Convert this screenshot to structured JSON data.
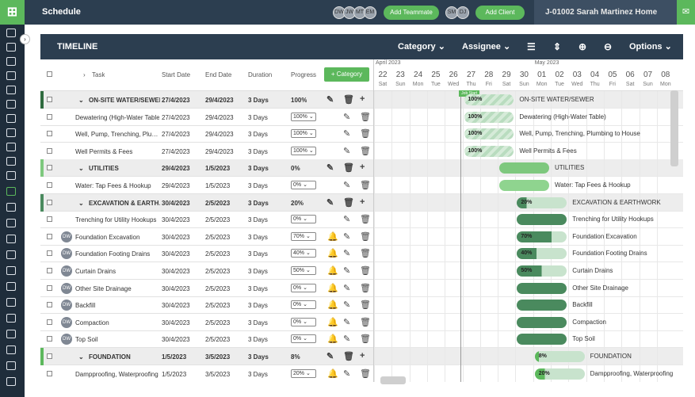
{
  "topbar": {
    "logo": "⊞",
    "title": "Schedule",
    "avatars_left": [
      "DW",
      "JW",
      "MT",
      "EM"
    ],
    "add_teammate": "Add Teammate",
    "avatars_right": [
      "SM",
      "DJ"
    ],
    "add_client": "Add Client",
    "job": "J-01002 Sarah Martinez Home",
    "chat_icon": "chat-icon"
  },
  "panel": {
    "title": "TIMELINE",
    "category": "Category ⌄",
    "assignee": "Assignee ⌄",
    "options": "Options ⌄"
  },
  "grid": {
    "headers": {
      "task": "Task",
      "start": "Start Date",
      "end": "End Date",
      "duration": "Duration",
      "progress": "Progress",
      "add_category": "+ Category"
    },
    "rows": [
      {
        "type": "group",
        "name": "ON-SITE WATER/SEWER",
        "start": "27/4/2023",
        "end": "29/4/2023",
        "duration": "3 Days",
        "progress": "100%",
        "color": "#2f6b3f"
      },
      {
        "type": "task",
        "name": "Dewatering (High-Water Table)",
        "start": "27/4/2023",
        "end": "29/4/2023",
        "duration": "3 Days",
        "progress": "100%"
      },
      {
        "type": "task",
        "name": "Well, Pump, Trenching, Plu…",
        "start": "27/4/2023",
        "end": "29/4/2023",
        "duration": "3 Days",
        "progress": "100%"
      },
      {
        "type": "task",
        "name": "Well Permits & Fees",
        "start": "27/4/2023",
        "end": "29/4/2023",
        "duration": "3 Days",
        "progress": "100%"
      },
      {
        "type": "group",
        "name": "UTILITIES",
        "start": "29/4/2023",
        "end": "1/5/2023",
        "duration": "3 Days",
        "progress": "0%",
        "color": "#7ec87e"
      },
      {
        "type": "task",
        "name": "Water: Tap Fees & Hookup",
        "start": "29/4/2023",
        "end": "1/5/2023",
        "duration": "3 Days",
        "progress": "0%"
      },
      {
        "type": "group",
        "name": "EXCAVATION & EARTH…",
        "start": "30/4/2023",
        "end": "2/5/2023",
        "duration": "3 Days",
        "progress": "20%",
        "color": "#4a8a5e"
      },
      {
        "type": "task",
        "name": "Trenching for Utility Hookups",
        "start": "30/4/2023",
        "end": "2/5/2023",
        "duration": "3 Days",
        "progress": "0%"
      },
      {
        "type": "task",
        "name": "Foundation Excavation",
        "start": "30/4/2023",
        "end": "2/5/2023",
        "duration": "3 Days",
        "progress": "70%",
        "avatar": "DW",
        "bell": true
      },
      {
        "type": "task",
        "name": "Foundation Footing Drains",
        "start": "30/4/2023",
        "end": "2/5/2023",
        "duration": "3 Days",
        "progress": "40%",
        "avatar": "DW",
        "bell": true
      },
      {
        "type": "task",
        "name": "Curtain Drains",
        "start": "30/4/2023",
        "end": "2/5/2023",
        "duration": "3 Days",
        "progress": "50%",
        "avatar": "DW",
        "bell": true
      },
      {
        "type": "task",
        "name": "Other Site Drainage",
        "start": "30/4/2023",
        "end": "2/5/2023",
        "duration": "3 Days",
        "progress": "0%",
        "avatar": "DW",
        "bell": true
      },
      {
        "type": "task",
        "name": "Backfill",
        "start": "30/4/2023",
        "end": "2/5/2023",
        "duration": "3 Days",
        "progress": "0%",
        "avatar": "DW",
        "bell": true
      },
      {
        "type": "task",
        "name": "Compaction",
        "start": "30/4/2023",
        "end": "2/5/2023",
        "duration": "3 Days",
        "progress": "0%",
        "avatar": "DW",
        "bell": true
      },
      {
        "type": "task",
        "name": "Top Soil",
        "start": "30/4/2023",
        "end": "2/5/2023",
        "duration": "3 Days",
        "progress": "0%",
        "avatar": "DW",
        "bell": true
      },
      {
        "type": "group",
        "name": "FOUNDATION",
        "start": "1/5/2023",
        "end": "3/5/2023",
        "duration": "3 Days",
        "progress": "8%",
        "color": "#5cb85c"
      },
      {
        "type": "task",
        "name": "Dampproofing, Waterproofing",
        "start": "1/5/2023",
        "end": "3/5/2023",
        "duration": "3 Days",
        "progress": "20%",
        "bell": true
      }
    ]
  },
  "gantt": {
    "months": [
      {
        "label": "April 2023"
      },
      {
        "label": "May 2023"
      }
    ],
    "days": [
      {
        "d": "22",
        "n": "Sat"
      },
      {
        "d": "23",
        "n": "Sun"
      },
      {
        "d": "24",
        "n": "Mon"
      },
      {
        "d": "25",
        "n": "Tue"
      },
      {
        "d": "26",
        "n": "Wed"
      },
      {
        "d": "27",
        "n": "Thu"
      },
      {
        "d": "28",
        "n": "Fri"
      },
      {
        "d": "29",
        "n": "Sat"
      },
      {
        "d": "30",
        "n": "Sun"
      },
      {
        "d": "01",
        "n": "Mon"
      },
      {
        "d": "02",
        "n": "Tue"
      },
      {
        "d": "03",
        "n": "Wed"
      },
      {
        "d": "04",
        "n": "Thu"
      },
      {
        "d": "05",
        "n": "Fri"
      },
      {
        "d": "06",
        "n": "Sat"
      },
      {
        "d": "07",
        "n": "Sun"
      },
      {
        "d": "08",
        "n": "Mon"
      }
    ],
    "job_start": "Job Start",
    "bars": [
      {
        "label": "100%",
        "name": "ON-SITE WATER/SEWER",
        "start_day": 5,
        "days": 3,
        "color": "#8fc99a",
        "pct": 1.0,
        "hatched": true
      },
      {
        "label": "100%",
        "name": "Dewatering (High-Water Table)",
        "start_day": 5,
        "days": 3,
        "color": "#8fc99a",
        "pct": 1.0,
        "hatched": true
      },
      {
        "label": "100%",
        "name": "Well, Pump, Trenching, Plumbing to House",
        "start_day": 5,
        "days": 3,
        "color": "#8fc99a",
        "pct": 1.0,
        "hatched": true
      },
      {
        "label": "100%",
        "name": "Well Permits & Fees",
        "start_day": 5,
        "days": 3,
        "color": "#8fc99a",
        "pct": 1.0,
        "hatched": true
      },
      {
        "label": "",
        "name": "UTILITIES",
        "start_day": 7,
        "days": 3,
        "color": "#7ec87e",
        "pct": 0
      },
      {
        "label": "",
        "name": "Water: Tap Fees & Hookup",
        "start_day": 7,
        "days": 3,
        "color": "#8fd48f",
        "pct": 0
      },
      {
        "label": "20%",
        "name": "EXCAVATION & EARTHWORK",
        "start_day": 8,
        "days": 3,
        "color": "#4a8a5e",
        "pct": 0.2
      },
      {
        "label": "",
        "name": "Trenching for Utility Hookups",
        "start_day": 8,
        "days": 3,
        "color": "#4a8a5e",
        "pct": 0
      },
      {
        "label": "70%",
        "name": "Foundation Excavation",
        "start_day": 8,
        "days": 3,
        "color": "#4a8a5e",
        "pct": 0.7
      },
      {
        "label": "40%",
        "name": "Foundation Footing Drains",
        "start_day": 8,
        "days": 3,
        "color": "#4a8a5e",
        "pct": 0.4
      },
      {
        "label": "50%",
        "name": "Curtain Drains",
        "start_day": 8,
        "days": 3,
        "color": "#4a8a5e",
        "pct": 0.5
      },
      {
        "label": "",
        "name": "Other Site Drainage",
        "start_day": 8,
        "days": 3,
        "color": "#4a8a5e",
        "pct": 0
      },
      {
        "label": "",
        "name": "Backfill",
        "start_day": 8,
        "days": 3,
        "color": "#4a8a5e",
        "pct": 0
      },
      {
        "label": "",
        "name": "Compaction",
        "start_day": 8,
        "days": 3,
        "color": "#4a8a5e",
        "pct": 0
      },
      {
        "label": "",
        "name": "Top Soil",
        "start_day": 8,
        "days": 3,
        "color": "#4a8a5e",
        "pct": 0
      },
      {
        "label": "8%",
        "name": "FOUNDATION",
        "start_day": 9,
        "days": 3,
        "color": "#5cb85c",
        "pct": 0.08
      },
      {
        "label": "20%",
        "name": "Dampproofing, Waterproofing",
        "start_day": 9,
        "days": 3,
        "color": "#5cb85c",
        "pct": 0.2
      }
    ]
  }
}
